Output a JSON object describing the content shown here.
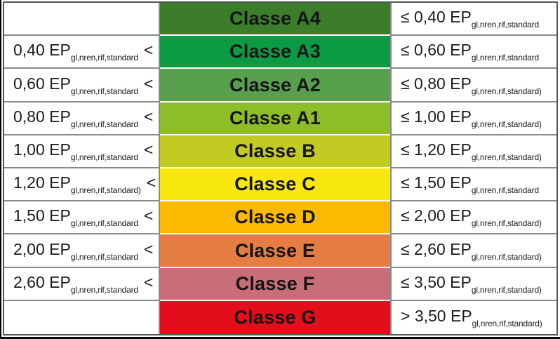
{
  "table": {
    "rows": [
      {
        "class_label": "Classe A4",
        "band_color": "#3c7d2c",
        "left_main": "",
        "left_sub": "",
        "left_after": "",
        "right_main": "≤ 0,40 EP",
        "right_sub": "gl,nren,rif,standard"
      },
      {
        "class_label": "Classe A3",
        "band_color": "#0a9b44",
        "left_main": "0,40 EP",
        "left_sub": "gl,nren,rif,standard",
        "left_after": "<",
        "right_main": "≤ 0,60 EP",
        "right_sub": "gl,nren,rif,standard"
      },
      {
        "class_label": "Classe A2",
        "band_color": "#58a04e",
        "left_main": "0,60 EP",
        "left_sub": "gl,nren,rif,standard",
        "left_after": "<",
        "right_main": "≤ 0,80 EP",
        "right_sub": "gl,nren,rif,standard)"
      },
      {
        "class_label": "Classe A1",
        "band_color": "#8ebe27",
        "left_main": "0,80 EP",
        "left_sub": "gl,nren,rif,standard",
        "left_after": "<",
        "right_main": "≤ 1,00 EP",
        "right_sub": "gl,nren,rif,standard)"
      },
      {
        "class_label": "Classe B",
        "band_color": "#c2cb21",
        "left_main": "1,00 EP",
        "left_sub": "gl,nren,rif,standard",
        "left_after": "<",
        "right_main": "≤ 1,20 EP",
        "right_sub": "gl,nren,rif,standard)"
      },
      {
        "class_label": "Classe C",
        "band_color": "#f9e80d",
        "left_main": "1,20 EP",
        "left_sub": "gl,nren,rif,standard)",
        "left_after": "<",
        "right_main": "≤ 1,50 EP",
        "right_sub": "gl,nren,rif,standard"
      },
      {
        "class_label": "Classe D",
        "band_color": "#fbba00",
        "left_main": "1,50 EP",
        "left_sub": "gl,nren,rif,standard",
        "left_after": "<",
        "right_main": "≤ 2,00 EP",
        "right_sub": "gl,nren,rif,standard)"
      },
      {
        "class_label": "Classe E",
        "band_color": "#e57c41",
        "left_main": "2,00 EP",
        "left_sub": "gl,nren,rif,standard",
        "left_after": "<",
        "right_main": "≤ 2,60 EP",
        "right_sub": "gl,nren,rif,standard)"
      },
      {
        "class_label": "Classe F",
        "band_color": "#c96e79",
        "left_main": "2,60 EP",
        "left_sub": "gl,nren,rif,standard",
        "left_after": "<",
        "right_main": "≤ 3,50 EP",
        "right_sub": "gl,nren,rif,standard)"
      },
      {
        "class_label": "Classe G",
        "band_color": "#e30d1c",
        "left_main": "",
        "left_sub": "",
        "left_after": "",
        "right_main": "> 3,50 EP",
        "right_sub": "gl,nren,rif,standard)"
      }
    ]
  },
  "chart_data": {
    "type": "table",
    "title": "",
    "columns": [
      "lower_bound",
      "class",
      "upper_bound"
    ],
    "rows": [
      [
        "",
        "Classe A4",
        "≤ 0,40 EP gl,nren,rif,standard"
      ],
      [
        "0,40 EP gl,nren,rif,standard <",
        "Classe A3",
        "≤ 0,60 EP gl,nren,rif,standard"
      ],
      [
        "0,60 EP gl,nren,rif,standard <",
        "Classe A2",
        "≤ 0,80 EP gl,nren,rif,standard)"
      ],
      [
        "0,80 EP gl,nren,rif,standard <",
        "Classe A1",
        "≤ 1,00 EP gl,nren,rif,standard)"
      ],
      [
        "1,00 EP gl,nren,rif,standard <",
        "Classe B",
        "≤ 1,20 EP gl,nren,rif,standard)"
      ],
      [
        "1,20 EP gl,nren,rif,standard) <",
        "Classe C",
        "≤ 1,50 EP gl,nren,rif,standard"
      ],
      [
        "1,50 EP gl,nren,rif,standard <",
        "Classe D",
        "≤ 2,00 EP gl,nren,rif,standard)"
      ],
      [
        "2,00 EP gl,nren,rif,standard <",
        "Classe E",
        "≤ 2,60 EP gl,nren,rif,standard)"
      ],
      [
        "2,60 EP gl,nren,rif,standard <",
        "Classe F",
        "≤ 3,50 EP gl,nren,rif,standard)"
      ],
      [
        "",
        "Classe G",
        "> 3,50 EP gl,nren,rif,standard)"
      ]
    ],
    "band_colors": [
      "#3c7d2c",
      "#0a9b44",
      "#58a04e",
      "#8ebe27",
      "#c2cb21",
      "#f9e80d",
      "#fbba00",
      "#e57c41",
      "#c96e79",
      "#e30d1c"
    ],
    "grid": true,
    "legend_position": "none"
  }
}
